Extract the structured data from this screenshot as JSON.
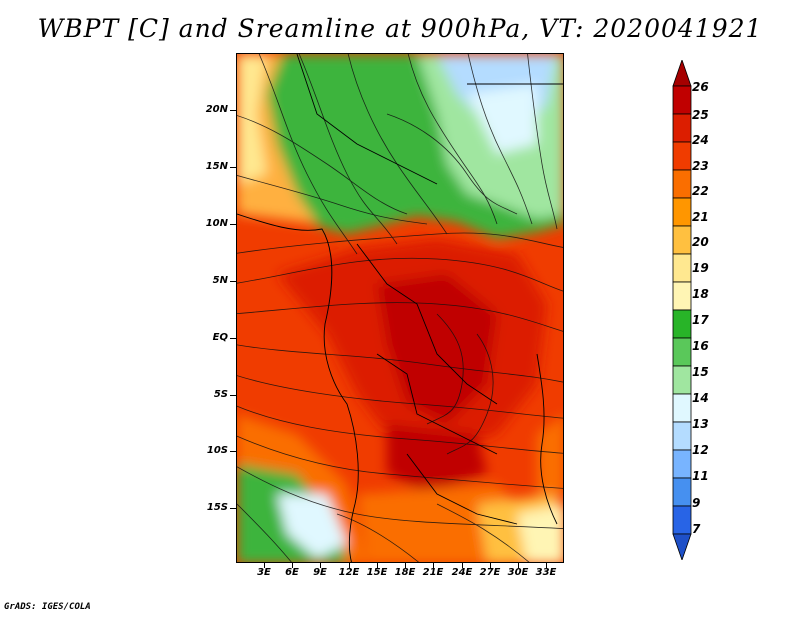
{
  "title": "WBPT [C] and Sreamline at 900hPa, VT: 2020041921",
  "footer": "GrADS: IGES/COLA",
  "map": {
    "lat_labels": [
      "20N",
      "15N",
      "10N",
      "5N",
      "EQ",
      "5S",
      "10S",
      "15S"
    ],
    "lon_labels": [
      "3E",
      "6E",
      "9E",
      "12E",
      "15E",
      "18E",
      "21E",
      "24E",
      "27E",
      "30E",
      "33E"
    ]
  },
  "colorbar": {
    "labels": [
      "26",
      "25",
      "24",
      "23",
      "22",
      "21",
      "20",
      "19",
      "18",
      "17",
      "16",
      "15",
      "14",
      "13",
      "12",
      "11",
      "9",
      "7"
    ],
    "colors": [
      "#a50000",
      "#c00000",
      "#dc1e00",
      "#f03c00",
      "#fa6e00",
      "#ff9600",
      "#ffc040",
      "#ffe890",
      "#fff5b4",
      "#28b428",
      "#5ac85a",
      "#a0e6a0",
      "#e0f8ff",
      "#b4dcff",
      "#78b4ff",
      "#4690f0",
      "#2864e6",
      "#1e50c8"
    ]
  }
}
